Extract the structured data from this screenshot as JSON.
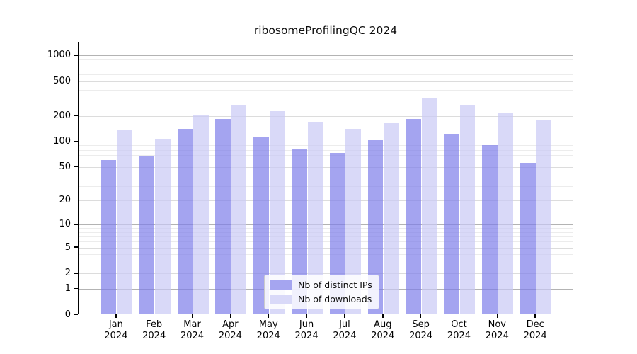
{
  "chart_data": {
    "type": "bar",
    "title": "ribosomeProfilingQC 2024",
    "year_label": "2024",
    "categories": [
      "Jan",
      "Feb",
      "Mar",
      "Apr",
      "May",
      "Jun",
      "Jul",
      "Aug",
      "Sep",
      "Oct",
      "Nov",
      "Dec"
    ],
    "series": [
      {
        "name": "Nb of distinct IPs",
        "color": "#a5a5f0",
        "values": [
          59,
          65,
          137,
          180,
          112,
          79,
          72,
          100,
          178,
          120,
          88,
          55
        ]
      },
      {
        "name": "Nb of downloads",
        "color": "#d9d9f8",
        "values": [
          133,
          104,
          201,
          257,
          219,
          162,
          138,
          160,
          311,
          260,
          206,
          173
        ]
      }
    ],
    "y_axis": {
      "scale": "log10(value+1)",
      "tick_labels": [
        1000,
        500,
        100,
        200,
        50,
        20,
        10,
        5,
        2,
        1,
        0
      ],
      "range_top": 1430,
      "major_grid_values": [
        1,
        10,
        100,
        1000
      ],
      "medium_grid_values": [
        2,
        5,
        20,
        50,
        200,
        500
      ]
    },
    "legend_position": "lower-center",
    "grid": true,
    "bar_alpha": 0.7,
    "colors": {
      "major_grid": "#b3b3b3",
      "medium_grid": "#dcdcdc",
      "minor_grid": "#ececec",
      "spine": "#000000"
    }
  }
}
